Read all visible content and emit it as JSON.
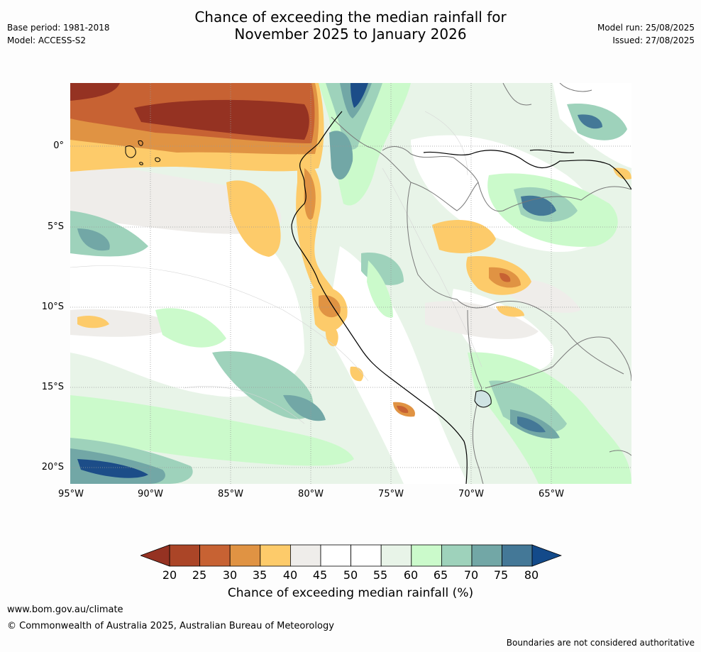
{
  "header": {
    "base_period": "Base period: 1981-2018",
    "model": "Model: ACCESS-S2",
    "title_line1": "Chance of exceeding the median rainfall for",
    "title_line2": "November 2025 to January 2026",
    "model_run": "Model run: 25/08/2025",
    "issued": "Issued: 27/08/2025"
  },
  "map": {
    "lat_labels": [
      "0°",
      "5°S",
      "10°S",
      "15°S",
      "20°S"
    ],
    "lon_labels": [
      "95°W",
      "90°W",
      "85°W",
      "80°W",
      "75°W",
      "70°W",
      "65°W"
    ]
  },
  "legend": {
    "ticks": [
      "20",
      "25",
      "30",
      "35",
      "40",
      "45",
      "50",
      "55",
      "60",
      "65",
      "70",
      "75",
      "80"
    ],
    "colors": [
      "#ab4527",
      "#c76233",
      "#e09343",
      "#fdcb6a",
      "#efedea",
      "#ffffff",
      "#ffffff",
      "#e8f4e8",
      "#cbfacb",
      "#9ed2bb",
      "#72a7a6",
      "#447897",
      "#1c4d88"
    ],
    "low_arrow_color": "#953222",
    "high_arrow_color": "#134a8a",
    "label": "Chance of exceeding median rainfall (%)"
  },
  "footer": {
    "url": "www.bom.gov.au/climate",
    "copyright": "© Commonwealth of Australia 2025, Australian Bureau of Meteorology",
    "disclaimer": "Boundaries are not considered authoritative"
  }
}
